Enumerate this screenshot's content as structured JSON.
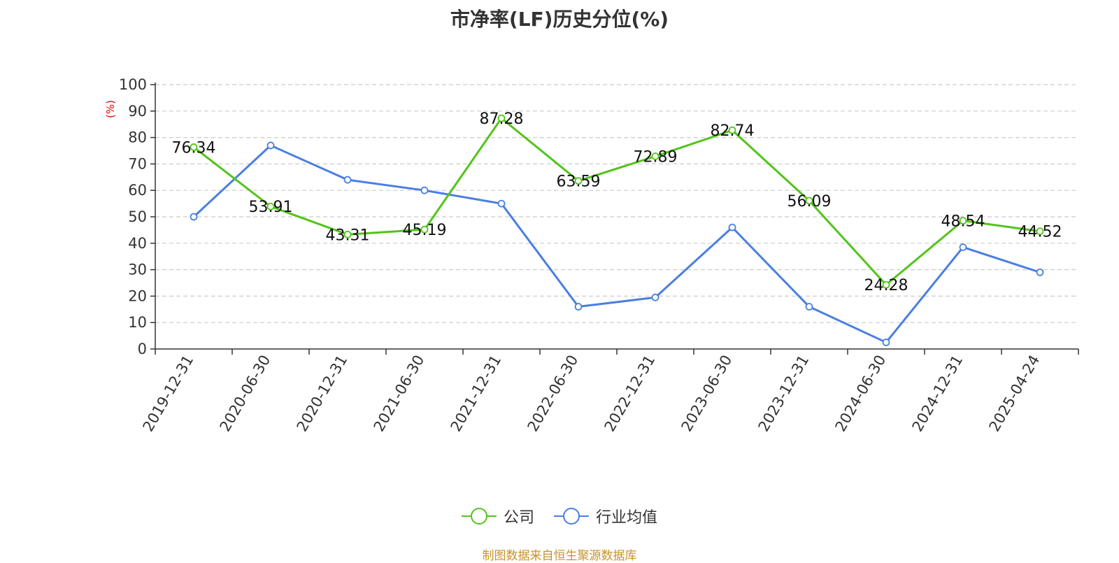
{
  "title": "市净率(LF)历史分位(%)",
  "source_note": "制图数据来自恒生聚源数据库",
  "colors": {
    "company": "#52c41a",
    "industry": "#4a7fe0",
    "ylabel": "#e00000",
    "source": "#c8922a",
    "axis": "#333333",
    "grid": "#cccccc"
  },
  "chart_data": {
    "type": "line",
    "title": "市净率(LF)历史分位(%)",
    "xlabel": "",
    "ylabel": "(%)",
    "ylim": [
      0,
      100
    ],
    "yticks": [
      0,
      10,
      20,
      30,
      40,
      50,
      60,
      70,
      80,
      90,
      100
    ],
    "grid": true,
    "legend": "bottom-center",
    "categories": [
      "2019-12-31",
      "2020-06-30",
      "2020-12-31",
      "2021-06-30",
      "2021-12-31",
      "2022-06-30",
      "2022-12-31",
      "2023-06-30",
      "2023-12-31",
      "2024-06-30",
      "2024-12-31",
      "2025-04-24"
    ],
    "series": [
      {
        "name": "公司",
        "values": [
          76.34,
          53.91,
          43.31,
          45.19,
          87.28,
          63.59,
          72.89,
          82.74,
          56.09,
          24.28,
          48.54,
          44.52
        ],
        "labels": [
          "76.34",
          "53.91",
          "43.31",
          "45.19",
          "87.28",
          "63.59",
          "72.89",
          "82.74",
          "56.09",
          "24.28",
          "48.54",
          "44.52"
        ]
      },
      {
        "name": "行业均值",
        "values": [
          50,
          77,
          64,
          60,
          55,
          16,
          19.5,
          46,
          16,
          2.5,
          38.5,
          29
        ]
      }
    ]
  }
}
